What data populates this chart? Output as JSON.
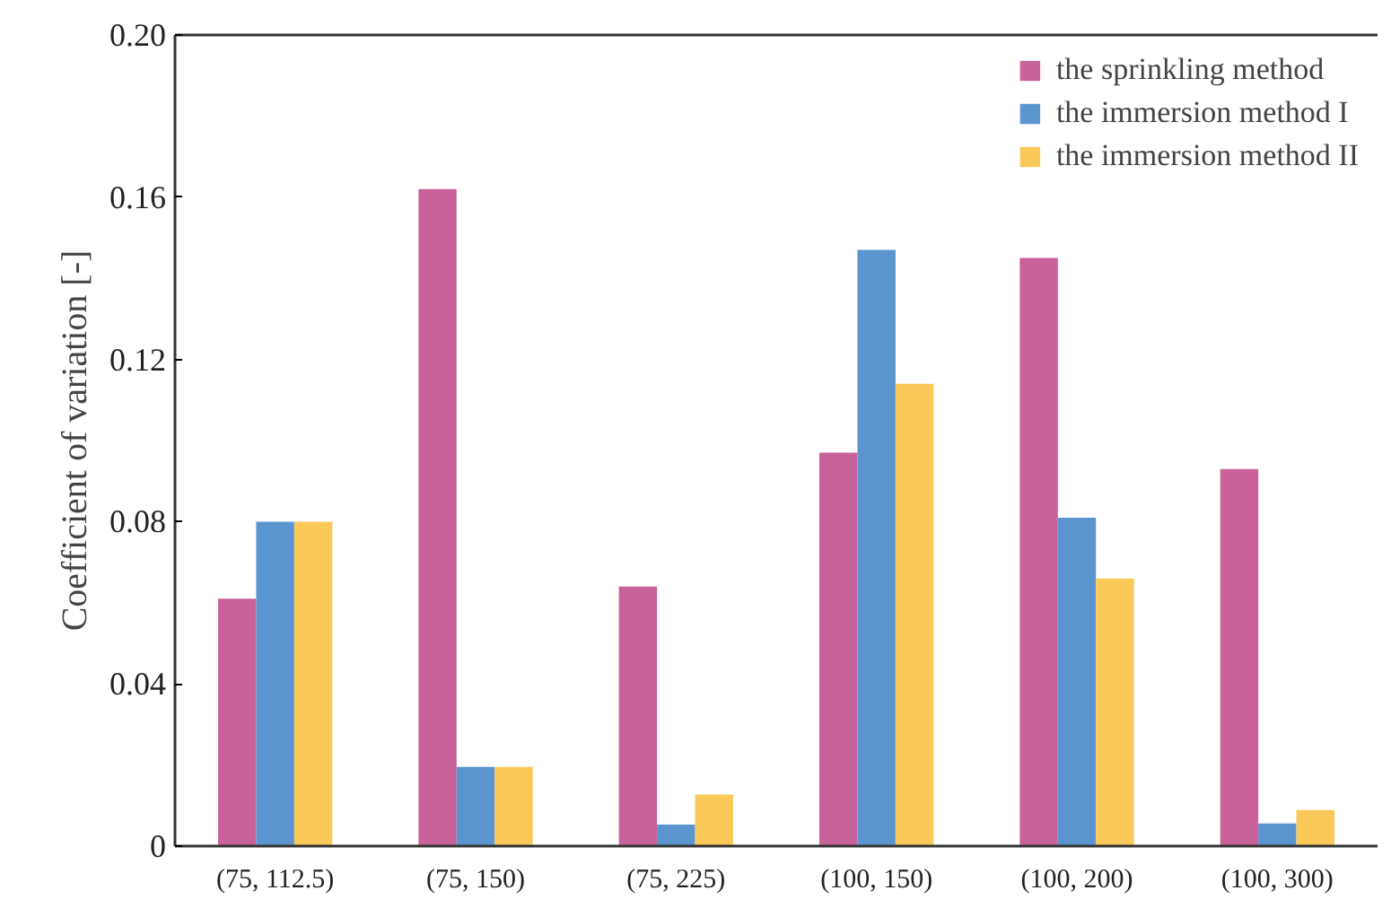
{
  "chart_data": {
    "type": "bar",
    "ylabel": "Coefficient of variation [-]",
    "categories": [
      "(75, 112.5)",
      "(75, 150)",
      "(75, 225)",
      "(100, 150)",
      "(100, 200)",
      "(100, 300)"
    ],
    "series": [
      {
        "name": "the sprinkling method",
        "color": "#c9619a",
        "values": [
          0.061,
          0.162,
          0.064,
          0.097,
          0.145,
          0.093
        ]
      },
      {
        "name": "the immersion method I",
        "color": "#5b95cf",
        "values": [
          0.08,
          0.0195,
          0.0053,
          0.147,
          0.081,
          0.0056
        ]
      },
      {
        "name": "the immersion method II",
        "color": "#fbc95a",
        "values": [
          0.08,
          0.0195,
          0.0127,
          0.114,
          0.066,
          0.0089
        ]
      }
    ],
    "ylim": [
      0,
      0.2
    ],
    "yticks": [
      {
        "value": 0,
        "label": "0"
      },
      0.04,
      0.08,
      0.12,
      0.16,
      {
        "value": 0.2,
        "label": "0.20"
      }
    ],
    "grid": false,
    "legend": "top right"
  }
}
